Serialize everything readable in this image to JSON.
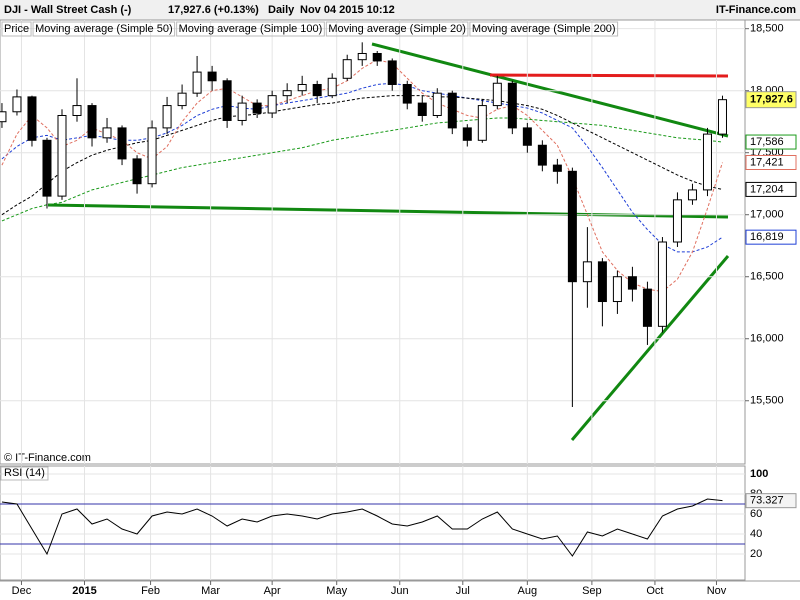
{
  "chart_data": [
    {
      "type": "candlestick",
      "title": "DJI - Wall Street Cash (-)",
      "quote": "17,927.6 (+0.13%)",
      "interval": "Daily",
      "timestamp": "Nov 04 2015 10:12",
      "source": "IT-Finance.com",
      "watermark": "© IT-Finance.com",
      "price_name": "Price",
      "price_label": "17,927.6",
      "up_color": "#ffffff",
      "down_color": "#000000",
      "xlim": [
        -0.13,
        49.5
      ],
      "xticks": [
        {
          "value": 1.3,
          "label": "Dec"
        },
        {
          "value": 5.5,
          "label": "2015"
        },
        {
          "value": 9.9,
          "label": "Feb"
        },
        {
          "value": 13.9,
          "label": "Mar"
        },
        {
          "value": 18,
          "label": "Apr"
        },
        {
          "value": 22.3,
          "label": "May"
        },
        {
          "value": 26.5,
          "label": "Jun"
        },
        {
          "value": 30.7,
          "label": "Jul"
        },
        {
          "value": 35,
          "label": "Aug"
        },
        {
          "value": 39.3,
          "label": "Sep"
        },
        {
          "value": 43.5,
          "label": "Oct"
        },
        {
          "value": 47.6,
          "label": "Nov"
        }
      ],
      "ylim": [
        14990,
        18570
      ],
      "yticks": [
        {
          "value": 15500,
          "label": "15,500"
        },
        {
          "value": 16000,
          "label": "16,000"
        },
        {
          "value": 16500,
          "label": "16,500"
        },
        {
          "value": 17000,
          "label": "17,000"
        },
        {
          "value": 17500,
          "label": "17,500"
        },
        {
          "value": 18000,
          "label": "18,000"
        },
        {
          "value": 18500,
          "label": "18,500"
        }
      ],
      "grid": true,
      "open": [
        17750,
        17830,
        17950,
        17600,
        17150,
        17800,
        17880,
        17620,
        17700,
        17450,
        17250,
        17700,
        17880,
        17980,
        18150,
        18080,
        17760,
        17900,
        17820,
        17960,
        18000,
        18050,
        17960,
        18100,
        18250,
        18300,
        18240,
        18050,
        17900,
        17800,
        17980,
        17700,
        17600,
        17880,
        18060,
        17700,
        17560,
        17400,
        17350,
        16460,
        16620,
        16300,
        16500,
        16400,
        16100,
        16780,
        17120,
        17200,
        17650
      ],
      "high": [
        17900,
        18010,
        17960,
        17620,
        17850,
        18100,
        17900,
        17780,
        17720,
        17480,
        17760,
        17950,
        18050,
        18280,
        18200,
        18100,
        17960,
        17930,
        18000,
        18060,
        18120,
        18080,
        18140,
        18290,
        18390,
        18320,
        18260,
        18080,
        17960,
        18020,
        18000,
        17730,
        17930,
        18120,
        18080,
        17740,
        17600,
        17450,
        17380,
        16900,
        16650,
        16550,
        16580,
        16460,
        16820,
        17180,
        17250,
        17700,
        17960
      ],
      "low": [
        17700,
        17800,
        17550,
        17050,
        17120,
        17750,
        17550,
        17580,
        17400,
        17170,
        17220,
        17650,
        17850,
        17950,
        18000,
        17700,
        17720,
        17780,
        17780,
        17900,
        17960,
        17900,
        17940,
        18080,
        18200,
        18200,
        18000,
        17850,
        17750,
        17780,
        17650,
        17550,
        17580,
        17850,
        17650,
        17500,
        17350,
        17250,
        15450,
        16250,
        16100,
        16200,
        16300,
        15950,
        16050,
        16740,
        17080,
        17150,
        17620
      ],
      "close": [
        17830,
        17950,
        17600,
        17150,
        17800,
        17880,
        17620,
        17700,
        17450,
        17250,
        17700,
        17880,
        17980,
        18150,
        18080,
        17760,
        17900,
        17820,
        17960,
        18000,
        18050,
        17960,
        18100,
        18250,
        18300,
        18240,
        18050,
        17900,
        17800,
        17980,
        17700,
        17600,
        17880,
        18060,
        17700,
        17560,
        17400,
        17350,
        16460,
        16620,
        16300,
        16500,
        16400,
        16100,
        16780,
        17120,
        17200,
        17650,
        17927.6
      ],
      "series": [
        {
          "name": "Moving average (Simple 50)",
          "color": "#1f3fd6",
          "last_label": "16,819",
          "values": [
            17450,
            17550,
            17620,
            17640,
            17600,
            17620,
            17640,
            17620,
            17600,
            17600,
            17620,
            17660,
            17720,
            17800,
            17850,
            17880,
            17860,
            17850,
            17880,
            17900,
            17920,
            17940,
            17960,
            17980,
            18020,
            18050,
            18060,
            18040,
            18000,
            17980,
            17960,
            17940,
            17920,
            17900,
            17880,
            17860,
            17820,
            17760,
            17700,
            17550,
            17380,
            17200,
            17020,
            16880,
            16760,
            16700,
            16700,
            16740,
            16819
          ]
        },
        {
          "name": "Moving average (Simple 100)",
          "color": "#000000",
          "last_label": "17,204",
          "values": [
            17000,
            17080,
            17150,
            17250,
            17350,
            17420,
            17480,
            17520,
            17550,
            17580,
            17600,
            17640,
            17680,
            17720,
            17760,
            17790,
            17800,
            17810,
            17830,
            17850,
            17870,
            17890,
            17900,
            17920,
            17940,
            17950,
            17960,
            17960,
            17960,
            17950,
            17950,
            17940,
            17930,
            17920,
            17900,
            17880,
            17850,
            17800,
            17740,
            17680,
            17620,
            17560,
            17500,
            17440,
            17380,
            17320,
            17270,
            17230,
            17204
          ]
        },
        {
          "name": "Moving average (Simple 20)",
          "color": "#e07060",
          "last_label": "17,421",
          "values": [
            17400,
            17650,
            17800,
            17700,
            17550,
            17600,
            17700,
            17650,
            17600,
            17500,
            17450,
            17550,
            17750,
            17900,
            18000,
            18020,
            17950,
            17880,
            17880,
            17920,
            17960,
            18000,
            18020,
            18080,
            18180,
            18250,
            18220,
            18100,
            17980,
            17900,
            17850,
            17800,
            17780,
            17850,
            17880,
            17800,
            17680,
            17560,
            17300,
            17000,
            16700,
            16550,
            16450,
            16400,
            16380,
            16480,
            16700,
            17050,
            17421
          ]
        },
        {
          "name": "Moving average (Simple 200)",
          "color": "#1a9a1a",
          "last_label": "17,586",
          "values": [
            16950,
            17000,
            17050,
            17080,
            17100,
            17150,
            17200,
            17230,
            17260,
            17290,
            17320,
            17350,
            17380,
            17400,
            17420,
            17440,
            17460,
            17480,
            17500,
            17520,
            17540,
            17570,
            17600,
            17620,
            17640,
            17660,
            17680,
            17700,
            17720,
            17740,
            17750,
            17760,
            17770,
            17780,
            17780,
            17770,
            17760,
            17750,
            17740,
            17730,
            17720,
            17700,
            17680,
            17660,
            17640,
            17620,
            17610,
            17600,
            17586
          ]
        }
      ]
    },
    {
      "type": "line",
      "title": "RSI (14)",
      "xlim": [
        -0.13,
        49.5
      ],
      "ylim": [
        -6,
        108
      ],
      "yticks": [
        20,
        40,
        60,
        80,
        100
      ],
      "levels": [
        70,
        30
      ],
      "series": [
        {
          "name": "RSI (14)",
          "color": "#000000",
          "last_label": "73.327",
          "values": [
            72,
            70,
            45,
            20,
            60,
            65,
            50,
            55,
            45,
            40,
            58,
            62,
            60,
            65,
            58,
            48,
            55,
            52,
            58,
            60,
            58,
            55,
            60,
            62,
            65,
            58,
            50,
            48,
            52,
            58,
            45,
            45,
            55,
            62,
            45,
            40,
            35,
            38,
            18,
            42,
            38,
            45,
            40,
            35,
            58,
            65,
            68,
            75,
            73.327
          ]
        }
      ]
    }
  ]
}
